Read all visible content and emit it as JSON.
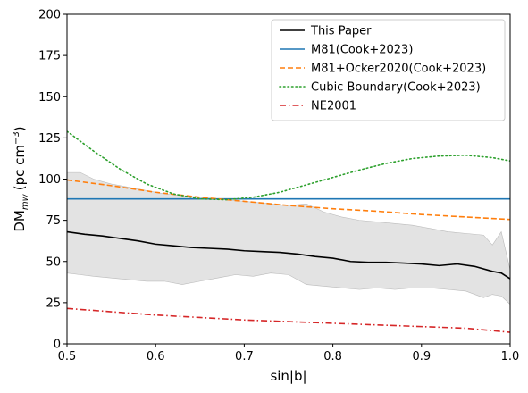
{
  "chart_data": {
    "type": "line",
    "title": "",
    "xlabel": "sin|b|",
    "ylabel_main": "DM",
    "ylabel_sub": "mw",
    "ylabel_units": "(pc cm",
    "ylabel_exp": "−3",
    "ylabel_close": ")",
    "xlim": [
      0.5,
      1.0
    ],
    "ylim": [
      0,
      200
    ],
    "xticks": [
      0.5,
      0.6,
      0.7,
      0.8,
      0.9,
      1.0
    ],
    "xtick_labels": [
      "0.5",
      "0.6",
      "0.7",
      "0.8",
      "0.9",
      "1.0"
    ],
    "yticks": [
      0,
      25,
      50,
      75,
      100,
      125,
      150,
      175,
      200
    ],
    "ytick_labels": [
      "0",
      "25",
      "50",
      "75",
      "100",
      "125",
      "150",
      "175",
      "200"
    ],
    "grid": false,
    "legend_position": "top-right",
    "band": {
      "color": "#cccccc",
      "x": [
        0.5,
        0.515,
        0.53,
        0.55,
        0.57,
        0.59,
        0.61,
        0.63,
        0.65,
        0.67,
        0.69,
        0.71,
        0.73,
        0.75,
        0.77,
        0.79,
        0.81,
        0.83,
        0.85,
        0.87,
        0.89,
        0.91,
        0.93,
        0.95,
        0.97,
        0.98,
        0.99,
        1.0
      ],
      "upper": [
        104,
        104,
        100,
        97,
        95,
        93,
        91,
        90,
        89,
        88,
        87,
        86,
        85,
        84,
        85,
        80,
        77,
        75,
        74,
        73,
        72,
        70,
        68,
        67,
        66,
        60,
        68,
        45
      ],
      "lower": [
        43,
        42,
        41,
        40,
        39,
        38,
        38,
        36,
        38,
        40,
        42,
        41,
        43,
        42,
        36,
        35,
        34,
        33,
        34,
        33,
        34,
        34,
        33,
        32,
        28,
        30,
        29,
        24
      ]
    },
    "series": [
      {
        "name": "This Paper",
        "color": "#000000",
        "dash": "solid",
        "x": [
          0.5,
          0.52,
          0.54,
          0.56,
          0.58,
          0.6,
          0.62,
          0.64,
          0.66,
          0.68,
          0.7,
          0.72,
          0.74,
          0.76,
          0.78,
          0.8,
          0.82,
          0.84,
          0.86,
          0.88,
          0.9,
          0.92,
          0.94,
          0.96,
          0.98,
          0.99,
          1.0
        ],
        "y": [
          68,
          66.5,
          65.5,
          64,
          62.5,
          60.5,
          59.5,
          58.5,
          58,
          57.5,
          56.5,
          56,
          55.5,
          54.5,
          53,
          52,
          50,
          49.5,
          49.5,
          49,
          48.5,
          47.5,
          48.5,
          47,
          44,
          43,
          39.5
        ]
      },
      {
        "name": "M81(Cook+2023)",
        "color": "#1f77b4",
        "dash": "solid",
        "x": [
          0.5,
          1.0
        ],
        "y": [
          88,
          88
        ]
      },
      {
        "name": "M81+Ocker2020(Cook+2023)",
        "color": "#ff7f0e",
        "dash": "dashed",
        "x": [
          0.5,
          0.55,
          0.6,
          0.65,
          0.7,
          0.75,
          0.8,
          0.85,
          0.9,
          0.95,
          1.0
        ],
        "y": [
          99.5,
          96,
          92,
          89,
          86.5,
          84,
          82,
          80.5,
          78.5,
          77,
          75.5
        ]
      },
      {
        "name": "Cubic Boundary(Cook+2023)",
        "color": "#2ca02c",
        "dash": "dotted",
        "x": [
          0.5,
          0.53,
          0.56,
          0.59,
          0.62,
          0.65,
          0.68,
          0.71,
          0.74,
          0.77,
          0.8,
          0.83,
          0.86,
          0.89,
          0.92,
          0.95,
          0.98,
          1.0
        ],
        "y": [
          129,
          117,
          106,
          97,
          91,
          88,
          87.5,
          89,
          92,
          96.5,
          101,
          105.5,
          109.5,
          112.5,
          114,
          114.5,
          113,
          111
        ]
      },
      {
        "name": "NE2001",
        "color": "#d62728",
        "dash": "dashdot",
        "x": [
          0.5,
          0.55,
          0.6,
          0.65,
          0.7,
          0.75,
          0.8,
          0.85,
          0.9,
          0.95,
          1.0
        ],
        "y": [
          21.5,
          19.5,
          17.5,
          16,
          14.5,
          13.5,
          12.5,
          11.5,
          10.5,
          9.5,
          7
        ]
      }
    ]
  }
}
